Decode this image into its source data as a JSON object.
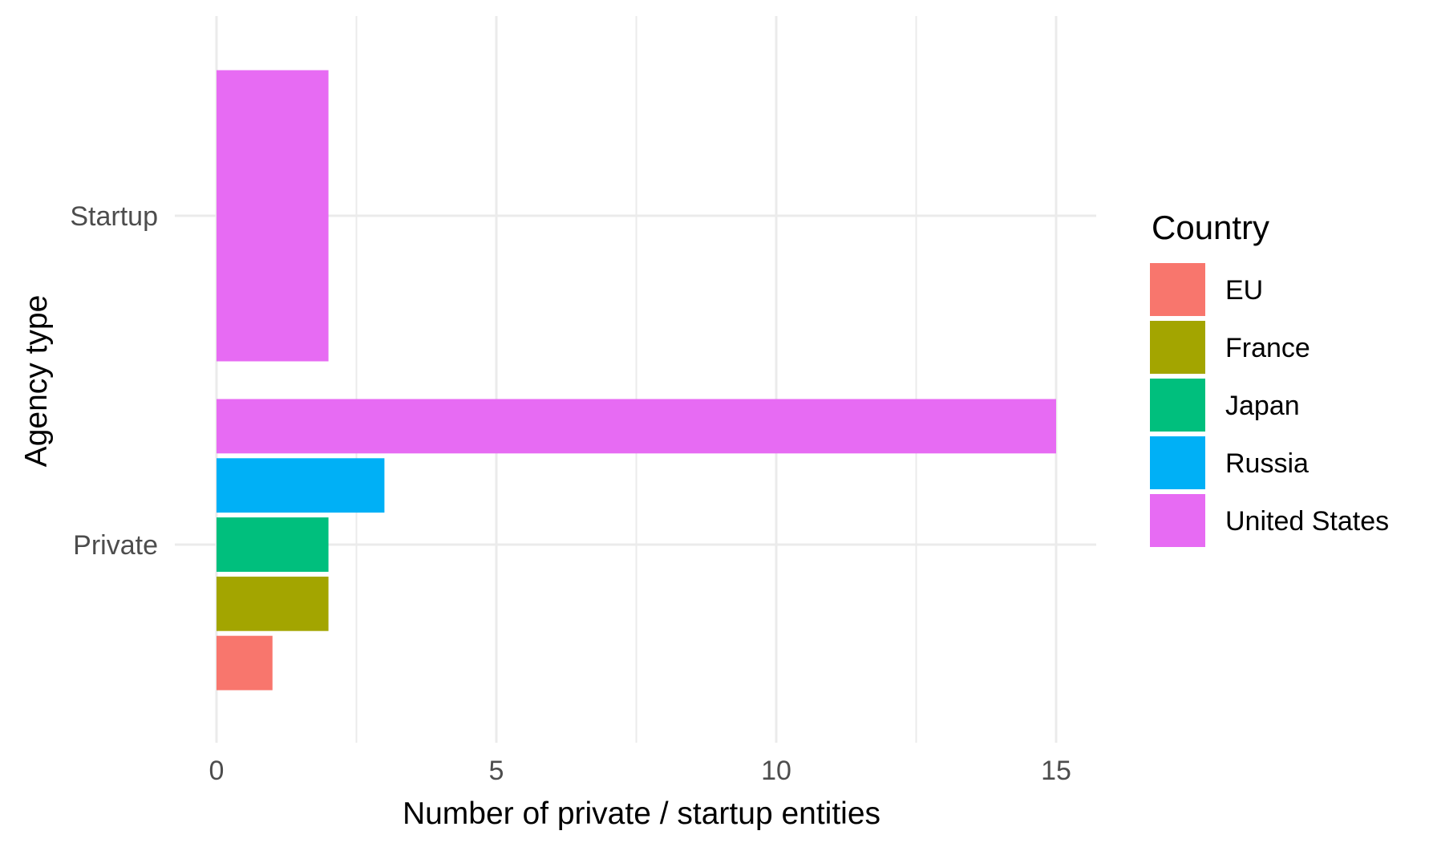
{
  "chart_data": {
    "type": "bar",
    "orientation": "horizontal",
    "xlabel": "Number of private / startup entities",
    "ylabel": "Agency type",
    "xlim": [
      0,
      15.75
    ],
    "x_ticks": [
      0,
      5,
      10,
      15
    ],
    "grid": true,
    "categories": [
      "Private",
      "Startup"
    ],
    "legend": {
      "title": "Country",
      "position": "right",
      "items": [
        "EU",
        "France",
        "Japan",
        "Russia",
        "United States"
      ]
    },
    "series": [
      {
        "name": "EU",
        "color": "#F8766D",
        "values": [
          1,
          null
        ]
      },
      {
        "name": "France",
        "color": "#A3A500",
        "values": [
          2,
          null
        ]
      },
      {
        "name": "Japan",
        "color": "#00BF7D",
        "values": [
          2,
          null
        ]
      },
      {
        "name": "Russia",
        "color": "#00B0F6",
        "values": [
          3,
          null
        ]
      },
      {
        "name": "United States",
        "color": "#E76BF3",
        "values": [
          15,
          2
        ]
      }
    ]
  }
}
